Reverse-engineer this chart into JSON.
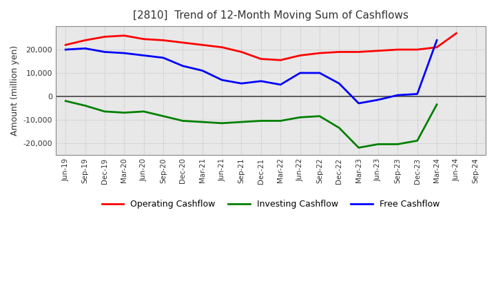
{
  "title": "[2810]  Trend of 12-Month Moving Sum of Cashflows",
  "ylabel": "Amount (million yen)",
  "xlabels": [
    "Jun-19",
    "Sep-19",
    "Dec-19",
    "Mar-20",
    "Jun-20",
    "Sep-20",
    "Dec-20",
    "Mar-21",
    "Jun-21",
    "Sep-21",
    "Dec-21",
    "Mar-22",
    "Jun-22",
    "Sep-22",
    "Dec-22",
    "Mar-23",
    "Jun-23",
    "Sep-23",
    "Dec-23",
    "Mar-24",
    "Jun-24",
    "Sep-24"
  ],
  "operating_cashflow": [
    22000,
    24000,
    25500,
    26000,
    24500,
    24000,
    23000,
    22000,
    21000,
    19000,
    16000,
    15500,
    17500,
    18500,
    19000,
    19000,
    19500,
    20000,
    20000,
    21000,
    27000,
    null
  ],
  "investing_cashflow": [
    -2000,
    -4000,
    -6500,
    -7000,
    -6500,
    -8500,
    -10500,
    -11000,
    -11500,
    -11000,
    -10500,
    -10500,
    -9000,
    -8500,
    -13500,
    -22000,
    -20500,
    -20500,
    -19000,
    -3500,
    null,
    null
  ],
  "free_cashflow": [
    20000,
    20500,
    19000,
    18500,
    17500,
    16500,
    13000,
    11000,
    7000,
    5500,
    6500,
    5000,
    10000,
    10000,
    5500,
    -3000,
    -1500,
    500,
    1000,
    24000,
    null,
    null
  ],
  "operating_color": "#ff0000",
  "investing_color": "#008000",
  "free_color": "#0000ff",
  "ylim": [
    -25000,
    30000
  ],
  "yticks": [
    -20000,
    -10000,
    0,
    10000,
    20000
  ],
  "background_color": "#ffffff",
  "plot_background": "#e8e8e8",
  "grid_color": "#bbbbbb",
  "linewidth": 2.0,
  "legend_labels": [
    "Operating Cashflow",
    "Investing Cashflow",
    "Free Cashflow"
  ]
}
